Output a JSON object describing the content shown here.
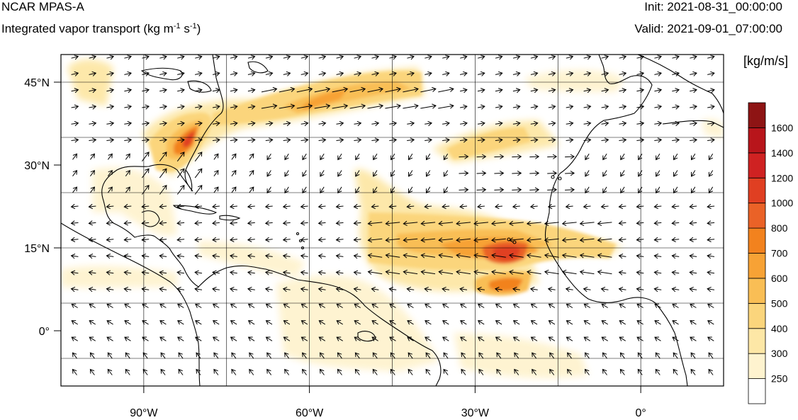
{
  "header": {
    "title": "NCAR MPAS-A",
    "subtitle_prefix": "Integrated vapor transport (kg m",
    "subtitle_exp1": "-1",
    "subtitle_mid": " s",
    "subtitle_exp2": "-1",
    "subtitle_suffix": ")",
    "init": "Init: 2021-08-31_00:00:00",
    "valid": "Valid: 2021-09-01_07:00:00"
  },
  "map": {
    "projection": "cylindrical-equidistant",
    "lon_range": [
      -105,
      15
    ],
    "lat_range": [
      -10,
      50
    ],
    "grid": true,
    "lat_ticks": [
      {
        "value": 45,
        "label": "45°N"
      },
      {
        "value": 30,
        "label": "30°N"
      },
      {
        "value": 15,
        "label": "15°N"
      },
      {
        "value": 0,
        "label": "0°"
      }
    ],
    "lon_ticks": [
      {
        "value": -90,
        "label": "90°W"
      },
      {
        "value": -60,
        "label": "60°W"
      },
      {
        "value": -30,
        "label": "30°W"
      },
      {
        "value": 0,
        "label": "0°"
      }
    ]
  },
  "colorbar": {
    "units": "[kg/m/s]",
    "placement": "right",
    "levels": [
      {
        "label": "250",
        "color": "#ffffff"
      },
      {
        "label": "300",
        "color": "#fef3cf"
      },
      {
        "label": "400",
        "color": "#fde7a6"
      },
      {
        "label": "500",
        "color": "#fbd57c"
      },
      {
        "label": "600",
        "color": "#f9be55"
      },
      {
        "label": "700",
        "color": "#f7a235"
      },
      {
        "label": "800",
        "color": "#f2821e"
      },
      {
        "label": "1000",
        "color": "#ea6227"
      },
      {
        "label": "1200",
        "color": "#e03f22"
      },
      {
        "label": "1400",
        "color": "#cf2222"
      },
      {
        "label": "1600",
        "color": "#b8151b"
      },
      {
        "label": "",
        "color": "#8e1414"
      }
    ]
  }
}
